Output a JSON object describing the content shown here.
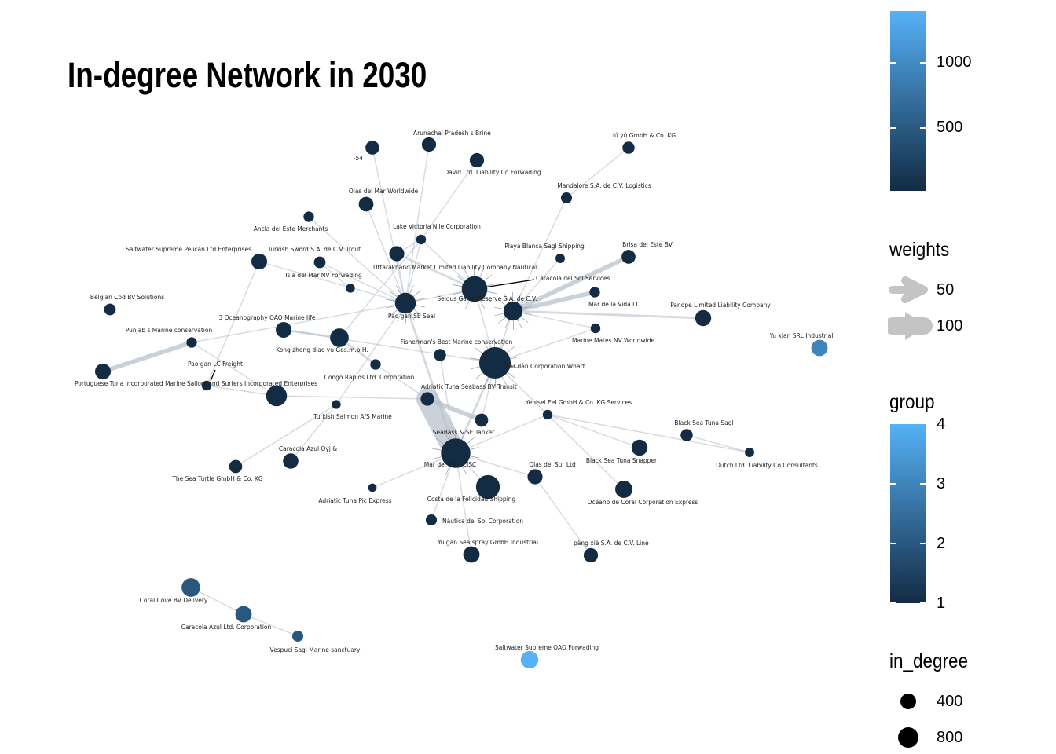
{
  "chart_data": {
    "type": "network",
    "title": "In-degree Network in 2030",
    "nodes": [
      {
        "id": "n1",
        "label": "Arunachal Pradesh s Brine",
        "group": 1,
        "in_degree": 120
      },
      {
        "id": "n2",
        "label": "-54",
        "group": 1,
        "in_degree": 110
      },
      {
        "id": "n3",
        "label": "David Ltd. Liability Co Forwading",
        "group": 1,
        "in_degree": 120
      },
      {
        "id": "n4",
        "label": "lú yú GmbH & Co. KG",
        "group": 1,
        "in_degree": 70
      },
      {
        "id": "n5",
        "label": "Mandalore S.A. de C.V. Logistics",
        "group": 1,
        "in_degree": 50
      },
      {
        "id": "n6",
        "label": "Olas del Mar Worldwide",
        "group": 1,
        "in_degree": 130
      },
      {
        "id": "n7",
        "label": "Ancla del Este Merchants",
        "group": 1,
        "in_degree": 40
      },
      {
        "id": "n8",
        "label": "Lake Victoria Nile   Corporation",
        "group": 1,
        "in_degree": 30
      },
      {
        "id": "n9",
        "label": "Saltwater Supreme Pelican Ltd Enterprises",
        "group": 1,
        "in_degree": 160
      },
      {
        "id": "n10",
        "label": "Turkish Sword S.A. de C.V. Trout",
        "group": 1,
        "in_degree": 60
      },
      {
        "id": "n11",
        "label": "Uttarakhand  Market Limited Liability Company Nautical",
        "group": 1,
        "in_degree": 140
      },
      {
        "id": "n12",
        "label": "Playa Blanca Sagl Shipping",
        "group": 1,
        "in_degree": 25
      },
      {
        "id": "n13",
        "label": "Brisa del Este BV",
        "group": 1,
        "in_degree": 110
      },
      {
        "id": "n14",
        "label": "Isla del Mar NV Forwading",
        "group": 1,
        "in_degree": 20
      },
      {
        "id": "n15",
        "label": "Caracola del Sol Services",
        "group": 1,
        "in_degree": 600
      },
      {
        "id": "n16",
        "label": "Selous Game Reserve  S.A. de C.V.",
        "group": 1,
        "in_degree": 280
      },
      {
        "id": "n17",
        "label": "Mar de la Vida LC",
        "group": 1,
        "in_degree": 40
      },
      {
        "id": "n18",
        "label": "Belgian Cod BV Solutions",
        "group": 1,
        "in_degree": 60
      },
      {
        "id": "n19",
        "label": "Panope Limited Liability Company",
        "group": 1,
        "in_degree": 170
      },
      {
        "id": "n20",
        "label": "3 Oceanography OAO Marine life",
        "group": 1,
        "in_degree": 160
      },
      {
        "id": "n21",
        "label": "Pao gan SE Seal",
        "group": 1,
        "in_degree": 350
      },
      {
        "id": "n22",
        "label": "Punjab s Marine conservation",
        "group": 1,
        "in_degree": 40
      },
      {
        "id": "n23",
        "label": "Kong zhong diao yu  Ges.m.b.H.",
        "group": 1,
        "in_degree": 260
      },
      {
        "id": "n24",
        "label": "Marine Mates NV Worldwide",
        "group": 1,
        "in_degree": 30
      },
      {
        "id": "n25",
        "label": "Yu xian  SRL Industrial",
        "group": 3,
        "in_degree": 180
      },
      {
        "id": "n26",
        "label": "Fisherman's Best Marine conservation",
        "group": 1,
        "in_degree": 70
      },
      {
        "id": "n27",
        "label": "Mar dân Corporation Wharf",
        "group": 1,
        "in_degree": 1000
      },
      {
        "id": "n28",
        "label": "Pao gan LC Freight",
        "group": 1,
        "in_degree": 30
      },
      {
        "id": "n29",
        "label": "Congo Rapids  Ltd. Corporation",
        "group": 1,
        "in_degree": 40
      },
      {
        "id": "n30",
        "label": "Portuguese Tuna Incorporated Marine",
        "group": 1,
        "in_degree": 160
      },
      {
        "id": "n31",
        "label": "Sailors and Surfers Incorporated Enterprises",
        "group": 1,
        "in_degree": 350
      },
      {
        "id": "n32",
        "label": "Adriatic Tuna Seabass BV Transit",
        "group": 1,
        "in_degree": 100
      },
      {
        "id": "n33",
        "label": "Yenisei  Eel GmbH & Co. KG Services",
        "group": 1,
        "in_degree": 30
      },
      {
        "id": "n34",
        "label": "Turkish Salmon A/S Marine",
        "group": 1,
        "in_degree": 20
      },
      {
        "id": "n35",
        "label": "Black Sea Tuna Sagl",
        "group": 1,
        "in_degree": 70
      },
      {
        "id": "n36",
        "label": "SeaBass &  SE Tanker",
        "group": 1,
        "in_degree": 90
      },
      {
        "id": "n37",
        "label": "Caracola Azul Oyj &",
        "group": 1,
        "in_degree": 150
      },
      {
        "id": "n38",
        "label": "Black Sea Tuna Snapper",
        "group": 1,
        "in_degree": 170
      },
      {
        "id": "n39",
        "label": "Dutch  Ltd. Liability Co Consultants",
        "group": 1,
        "in_degree": 25
      },
      {
        "id": "n40",
        "label": "Mar del Este CJSC",
        "group": 1,
        "in_degree": 850
      },
      {
        "id": "n41",
        "label": "The Sea Turtle GmbH & Co. KG",
        "group": 1,
        "in_degree": 90
      },
      {
        "id": "n42",
        "label": "Olas del Sur Ltd",
        "group": 1,
        "in_degree": 140
      },
      {
        "id": "n43",
        "label": "Océano de Coral Corporation Express",
        "group": 1,
        "in_degree": 210
      },
      {
        "id": "n44",
        "label": "Costa de la Felicidad Shipping",
        "group": 1,
        "in_degree": 500
      },
      {
        "id": "n45",
        "label": "Adriatic Tuna Pic Express",
        "group": 1,
        "in_degree": 15
      },
      {
        "id": "n46",
        "label": "Náutica del Sol Corporation",
        "group": 1,
        "in_degree": 50
      },
      {
        "id": "n47",
        "label": "Yu gan  Sea spray GmbH Industrial",
        "group": 1,
        "in_degree": 180
      },
      {
        "id": "n48",
        "label": "pàng xiè S.A. de C.V. Line",
        "group": 1,
        "in_degree": 120
      },
      {
        "id": "n49",
        "label": "Coral Cove BV Delivery",
        "group": 2,
        "in_degree": 260
      },
      {
        "id": "n50",
        "label": "Caracola Azul Ltd. Corporation",
        "group": 2,
        "in_degree": 180
      },
      {
        "id": "n51",
        "label": "Vespuci Sagl Marine sanctuary",
        "group": 2,
        "in_degree": 50
      },
      {
        "id": "n52",
        "label": "Saltwater Supreme OAO Forwading",
        "group": 4,
        "in_degree": 220
      }
    ],
    "edges": [
      {
        "from": "n2",
        "to": "n21",
        "weight": 5
      },
      {
        "from": "n1",
        "to": "n21",
        "weight": 5
      },
      {
        "from": "n3",
        "to": "n8",
        "weight": 5
      },
      {
        "from": "n6",
        "to": "n21",
        "weight": 5
      },
      {
        "from": "n4",
        "to": "n5",
        "weight": 5
      },
      {
        "from": "n5",
        "to": "n16",
        "weight": 5
      },
      {
        "from": "n7",
        "to": "n21",
        "weight": 5
      },
      {
        "from": "n8",
        "to": "n11",
        "weight": 5
      },
      {
        "from": "n8",
        "to": "n15",
        "weight": 5
      },
      {
        "from": "n8",
        "to": "n21",
        "weight": 5
      },
      {
        "from": "n8",
        "to": "n23",
        "weight": 5
      },
      {
        "from": "n9",
        "to": "n21",
        "weight": 5
      },
      {
        "from": "n9",
        "to": "n28",
        "weight": 5
      },
      {
        "from": "n10",
        "to": "n14",
        "weight": 5
      },
      {
        "from": "n10",
        "to": "n21",
        "weight": 5
      },
      {
        "from": "n11",
        "to": "n15",
        "weight": 10
      },
      {
        "from": "n11",
        "to": "n21",
        "weight": 5
      },
      {
        "from": "n12",
        "to": "n16",
        "weight": 5
      },
      {
        "from": "n13",
        "to": "n16",
        "weight": 20
      },
      {
        "from": "n15",
        "to": "n27",
        "weight": 5
      },
      {
        "from": "n15",
        "to": "n21",
        "weight": 5
      },
      {
        "from": "n16",
        "to": "n27",
        "weight": 5
      },
      {
        "from": "n17",
        "to": "n16",
        "weight": 20
      },
      {
        "from": "n19",
        "to": "n16",
        "weight": 10
      },
      {
        "from": "n20",
        "to": "n23",
        "weight": 10
      },
      {
        "from": "n20",
        "to": "n27",
        "weight": 5
      },
      {
        "from": "n21",
        "to": "n40",
        "weight": 10
      },
      {
        "from": "n22",
        "to": "n30",
        "weight": 20
      },
      {
        "from": "n22",
        "to": "n21",
        "weight": 5
      },
      {
        "from": "n22",
        "to": "n31",
        "weight": 5
      },
      {
        "from": "n23",
        "to": "n29",
        "weight": 10
      },
      {
        "from": "n24",
        "to": "n16",
        "weight": 5
      },
      {
        "from": "n24",
        "to": "n27",
        "weight": 5
      },
      {
        "from": "n26",
        "to": "n40",
        "weight": 5
      },
      {
        "from": "n27",
        "to": "n40",
        "weight": 10
      },
      {
        "from": "n28",
        "to": "n31",
        "weight": 5
      },
      {
        "from": "n29",
        "to": "n32",
        "weight": 5
      },
      {
        "from": "n31",
        "to": "n32",
        "weight": 5
      },
      {
        "from": "n32",
        "to": "n36",
        "weight": 20
      },
      {
        "from": "n32",
        "to": "n40",
        "weight": 100
      },
      {
        "from": "n33",
        "to": "n27",
        "weight": 5
      },
      {
        "from": "n33",
        "to": "n38",
        "weight": 5
      },
      {
        "from": "n33",
        "to": "n39",
        "weight": 5
      },
      {
        "from": "n33",
        "to": "n40",
        "weight": 5
      },
      {
        "from": "n33",
        "to": "n43",
        "weight": 5
      },
      {
        "from": "n34",
        "to": "n21",
        "weight": 5
      },
      {
        "from": "n34",
        "to": "n41",
        "weight": 5
      },
      {
        "from": "n34",
        "to": "n37",
        "weight": 5
      },
      {
        "from": "n35",
        "to": "n39",
        "weight": 5
      },
      {
        "from": "n36",
        "to": "n27",
        "weight": 5
      },
      {
        "from": "n40",
        "to": "n42",
        "weight": 5
      },
      {
        "from": "n40",
        "to": "n44",
        "weight": 5
      },
      {
        "from": "n45",
        "to": "n40",
        "weight": 5
      },
      {
        "from": "n46",
        "to": "n40",
        "weight": 5
      },
      {
        "from": "n47",
        "to": "n40",
        "weight": 5
      },
      {
        "from": "n48",
        "to": "n42",
        "weight": 5
      },
      {
        "from": "n49",
        "to": "n50",
        "weight": 5
      },
      {
        "from": "n50",
        "to": "n51",
        "weight": 5
      }
    ],
    "legends": {
      "colorbar_top": {
        "title": "",
        "ticks": [
          "500",
          "1000"
        ]
      },
      "weights": {
        "title": "weights",
        "entries": [
          "50",
          "100"
        ]
      },
      "group": {
        "title": "group",
        "ticks": [
          "1",
          "2",
          "3",
          "4"
        ]
      },
      "in_degree": {
        "title": "in_degree",
        "entries": [
          "400",
          "800"
        ]
      }
    },
    "colors": {
      "low": "#132B43",
      "high": "#56B1F7",
      "edge": "#b8c2cc",
      "label": "#222222"
    }
  }
}
